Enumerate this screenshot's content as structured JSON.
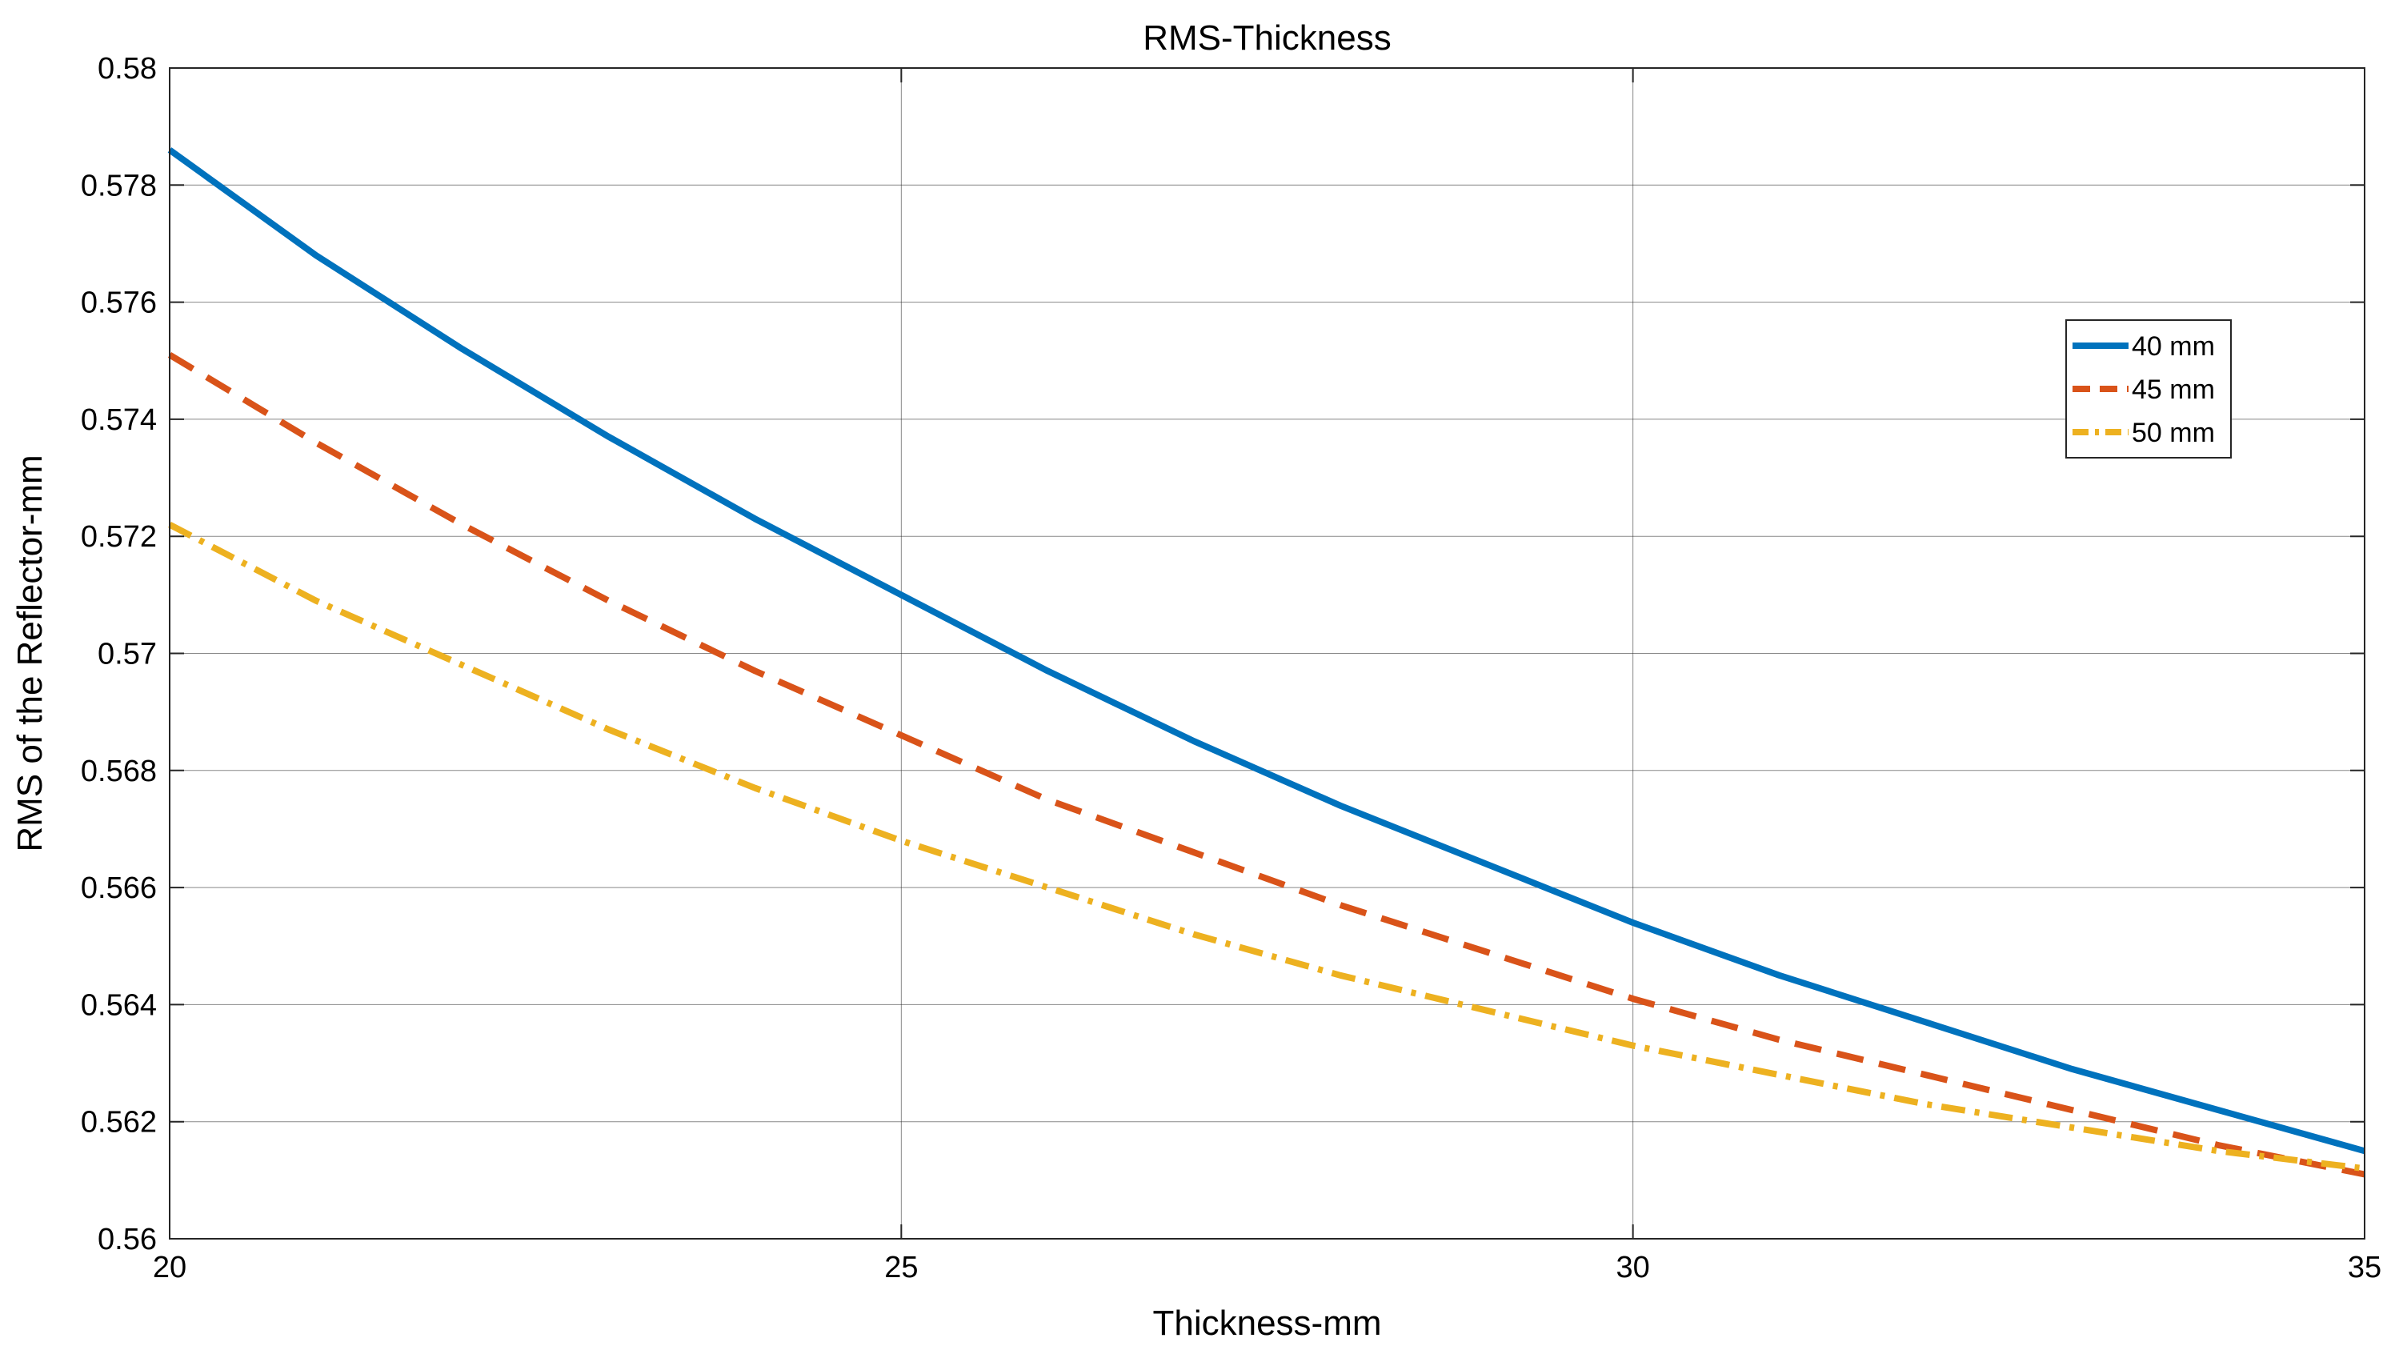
{
  "chart_data": {
    "type": "line",
    "title": "RMS-Thickness",
    "xlabel": "Thickness-mm",
    "ylabel": "RMS of the Reflector-mm",
    "xlim": [
      20,
      35
    ],
    "ylim": [
      0.56,
      0.58
    ],
    "x_ticks": [
      20,
      25,
      30,
      35
    ],
    "x_tick_labels": [
      "20",
      "25",
      "30",
      "35"
    ],
    "y_ticks": [
      0.56,
      0.562,
      0.564,
      0.566,
      0.568,
      0.57,
      0.572,
      0.574,
      0.576,
      0.578,
      0.58
    ],
    "y_tick_labels": [
      "0.56",
      "0.562",
      "0.564",
      "0.566",
      "0.568",
      "0.57",
      "0.572",
      "0.574",
      "0.576",
      "0.578",
      "0.58"
    ],
    "legend_position": "top-right",
    "series": [
      {
        "name": "40 mm",
        "color": "#0072BD",
        "style": "solid",
        "x": [
          20,
          21,
          22,
          23,
          24,
          25,
          26,
          27,
          28,
          29,
          30,
          31,
          32,
          33,
          34,
          35
        ],
        "y": [
          0.5786,
          0.5768,
          0.5752,
          0.5737,
          0.5723,
          0.571,
          0.5697,
          0.5685,
          0.5674,
          0.5664,
          0.5654,
          0.5645,
          0.5637,
          0.5629,
          0.5622,
          0.5615
        ]
      },
      {
        "name": "45 mm",
        "color": "#D95319",
        "style": "dashed",
        "x": [
          20,
          21,
          22,
          23,
          24,
          25,
          26,
          27,
          28,
          29,
          30,
          31,
          32,
          33,
          34,
          35
        ],
        "y": [
          0.5751,
          0.5736,
          0.5722,
          0.5709,
          0.5697,
          0.5686,
          0.5675,
          0.5666,
          0.5657,
          0.5649,
          0.5641,
          0.5634,
          0.5628,
          0.5622,
          0.5616,
          0.5611
        ]
      },
      {
        "name": "50 mm",
        "color": "#EDB120",
        "style": "dash-dot",
        "x": [
          20,
          21,
          22,
          23,
          24,
          25,
          26,
          27,
          28,
          29,
          30,
          31,
          32,
          33,
          34,
          35
        ],
        "y": [
          0.5722,
          0.5709,
          0.5698,
          0.5687,
          0.5677,
          0.5668,
          0.566,
          0.5652,
          0.5645,
          0.5639,
          0.5633,
          0.5628,
          0.5623,
          0.5619,
          0.5615,
          0.5612
        ]
      }
    ]
  }
}
